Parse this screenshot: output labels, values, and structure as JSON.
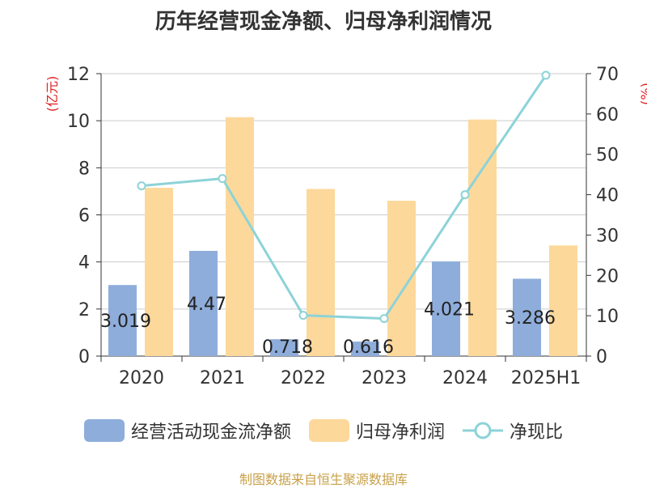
{
  "chart_data": {
    "type": "bar",
    "title": "历年经营现金净额、归母净利润情况",
    "categories": [
      "2020",
      "2021",
      "2022",
      "2023",
      "2024",
      "2025H1"
    ],
    "y_left_label": "(亿元)",
    "y_left_range": [
      0,
      12
    ],
    "y_left_ticks": [
      "0",
      "2",
      "4",
      "6",
      "8",
      "10",
      "12"
    ],
    "y_right_label": "(%)",
    "y_right_range": [
      0,
      70
    ],
    "y_right_ticks": [
      "0",
      "10",
      "20",
      "30",
      "40",
      "50",
      "60",
      "70"
    ],
    "series": [
      {
        "name": "经营活动现金流净额",
        "type": "bar",
        "axis": "left",
        "color": "#8eaddb",
        "values": [
          3.019,
          4.47,
          0.718,
          0.616,
          4.021,
          3.286
        ],
        "labels": [
          "3.019",
          "4.47",
          "0.718",
          "0.616",
          "4.021",
          "3.286"
        ]
      },
      {
        "name": "归母净利润",
        "type": "bar",
        "axis": "left",
        "color": "#fdd89b",
        "values": [
          7.15,
          10.15,
          7.1,
          6.6,
          10.05,
          4.7
        ]
      },
      {
        "name": "净现比",
        "type": "line",
        "axis": "right",
        "color": "#8cd3d8",
        "values": [
          42.2,
          44.0,
          10.1,
          9.3,
          40.0,
          69.6
        ]
      }
    ],
    "source": "制图数据来自恒生聚源数据库"
  }
}
